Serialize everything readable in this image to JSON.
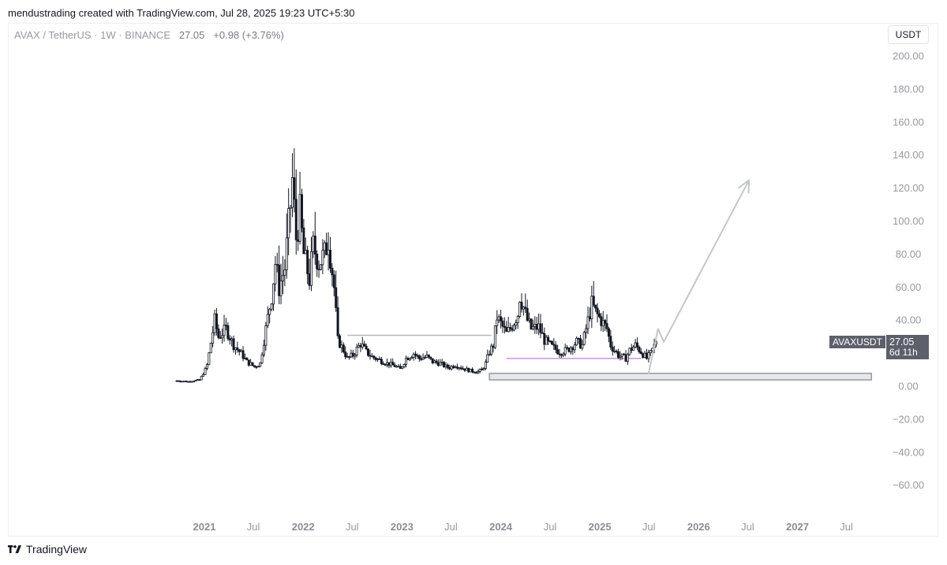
{
  "header": {
    "credit": "mendustrading created with TradingView.com, Jul 28, 2025 19:23 UTC+5:30"
  },
  "legend": {
    "symbol": "AVAX / TetherUS",
    "interval": "1W",
    "exchange": "BINANCE",
    "price": "27.05",
    "change": "+0.98 (+3.76%)"
  },
  "currency_button": "USDT",
  "price_tag": {
    "symbol": "AVAXUSDT",
    "price": "27.05",
    "countdown": "6d 11h"
  },
  "footer": {
    "brand": "TradingView"
  },
  "colors": {
    "candles": "#131722",
    "grid_text": "#9598a1",
    "zone_fill": "#e7e7e9",
    "zone_border": "#9b9ea6",
    "resistance_line": "#b5b8bf",
    "support_line": "#ce93d8",
    "arrow": "#c4c6cc",
    "tag_bg": "#5d606b"
  },
  "chart_data": {
    "type": "candlestick",
    "title": "AVAX / TetherUS · 1W · BINANCE",
    "ylabel": "USDT",
    "ylim": [
      -70,
      205
    ],
    "y_ticks": [
      "200.00",
      "180.00",
      "160.00",
      "140.00",
      "120.00",
      "100.00",
      "80.00",
      "60.00",
      "40.00",
      "20.00",
      "0.00",
      "−20.00",
      "−40.00",
      "−60.00"
    ],
    "x_ticks": [
      {
        "label": "2021",
        "bold": true
      },
      {
        "label": "Jul",
        "bold": false
      },
      {
        "label": "2022",
        "bold": true
      },
      {
        "label": "Jul",
        "bold": false
      },
      {
        "label": "2023",
        "bold": true
      },
      {
        "label": "Jul",
        "bold": false
      },
      {
        "label": "2024",
        "bold": true
      },
      {
        "label": "Jul",
        "bold": false
      },
      {
        "label": "2025",
        "bold": true
      },
      {
        "label": "Jul",
        "bold": false
      },
      {
        "label": "2026",
        "bold": true
      },
      {
        "label": "Jul",
        "bold": false
      },
      {
        "label": "2027",
        "bold": true
      },
      {
        "label": "Jul",
        "bold": false
      }
    ],
    "x_start": "2020-09-21",
    "x_end": "2025-07-28",
    "price_path": [
      [
        "2020-09-21",
        3.5
      ],
      [
        "2020-11-01",
        3.0
      ],
      [
        "2020-12-15",
        4.0
      ],
      [
        "2021-01-10",
        12.0
      ],
      [
        "2021-02-08",
        40.0
      ],
      [
        "2021-02-22",
        30.0
      ],
      [
        "2021-03-22",
        35.0
      ],
      [
        "2021-04-19",
        25.0
      ],
      [
        "2021-05-17",
        20.0
      ],
      [
        "2021-06-07",
        15.0
      ],
      [
        "2021-07-05",
        12.0
      ],
      [
        "2021-07-26",
        14.0
      ],
      [
        "2021-08-16",
        35.0
      ],
      [
        "2021-09-06",
        55.0
      ],
      [
        "2021-09-20",
        75.0
      ],
      [
        "2021-10-04",
        60.0
      ],
      [
        "2021-10-25",
        72.0
      ],
      [
        "2021-11-15",
        110.0
      ],
      [
        "2021-11-22",
        125.0
      ],
      [
        "2021-12-06",
        90.0
      ],
      [
        "2021-12-20",
        105.0
      ],
      [
        "2022-01-03",
        80.0
      ],
      [
        "2022-01-24",
        65.0
      ],
      [
        "2022-02-07",
        85.0
      ],
      [
        "2022-02-28",
        75.0
      ],
      [
        "2022-03-21",
        80.0
      ],
      [
        "2022-04-04",
        90.0
      ],
      [
        "2022-04-25",
        60.0
      ],
      [
        "2022-05-09",
        28.0
      ],
      [
        "2022-05-30",
        22.0
      ],
      [
        "2022-06-13",
        17.0
      ],
      [
        "2022-07-04",
        19.0
      ],
      [
        "2022-08-01",
        26.0
      ],
      [
        "2022-08-22",
        21.0
      ],
      [
        "2022-09-12",
        18.0
      ],
      [
        "2022-10-10",
        16.0
      ],
      [
        "2022-11-07",
        14.0
      ],
      [
        "2022-12-05",
        12.5
      ],
      [
        "2022-12-26",
        10.5
      ],
      [
        "2023-01-16",
        17.0
      ],
      [
        "2023-02-13",
        20.0
      ],
      [
        "2023-03-06",
        17.0
      ],
      [
        "2023-04-03",
        18.0
      ],
      [
        "2023-04-24",
        15.0
      ],
      [
        "2023-05-22",
        14.0
      ],
      [
        "2023-06-12",
        12.0
      ],
      [
        "2023-06-26",
        11.5
      ],
      [
        "2023-07-17",
        13.0
      ],
      [
        "2023-08-14",
        11.0
      ],
      [
        "2023-09-11",
        9.5
      ],
      [
        "2023-10-09",
        9.0
      ],
      [
        "2023-10-23",
        10.0
      ],
      [
        "2023-11-06",
        14.0
      ],
      [
        "2023-11-20",
        21.0
      ],
      [
        "2023-12-04",
        25.0
      ],
      [
        "2023-12-18",
        42.0
      ],
      [
        "2024-01-01",
        38.0
      ],
      [
        "2024-01-22",
        32.0
      ],
      [
        "2024-02-12",
        37.0
      ],
      [
        "2024-03-04",
        44.0
      ],
      [
        "2024-03-11",
        55.0
      ],
      [
        "2024-03-25",
        48.0
      ],
      [
        "2024-04-08",
        40.0
      ],
      [
        "2024-04-22",
        35.0
      ],
      [
        "2024-05-20",
        36.0
      ],
      [
        "2024-06-10",
        28.0
      ],
      [
        "2024-07-08",
        24.0
      ],
      [
        "2024-08-05",
        21.0
      ],
      [
        "2024-09-02",
        22.0
      ],
      [
        "2024-10-07",
        27.0
      ],
      [
        "2024-10-28",
        25.0
      ],
      [
        "2024-11-11",
        35.0
      ],
      [
        "2024-12-02",
        50.0
      ],
      [
        "2024-12-16",
        45.0
      ],
      [
        "2025-01-06",
        40.0
      ],
      [
        "2025-01-27",
        35.0
      ],
      [
        "2025-02-10",
        25.0
      ],
      [
        "2025-03-10",
        19.0
      ],
      [
        "2025-04-07",
        17.0
      ],
      [
        "2025-04-21",
        22.0
      ],
      [
        "2025-05-12",
        25.0
      ],
      [
        "2025-06-02",
        21.0
      ],
      [
        "2025-06-23",
        17.0
      ],
      [
        "2025-07-07",
        20.0
      ],
      [
        "2025-07-28",
        27.05
      ]
    ],
    "annotations": {
      "demand_zone": {
        "from": "2023-11-20",
        "to": "2027-10-01",
        "top": 8.0,
        "bottom": 4.0
      },
      "resistance_line": {
        "from": "2022-06-13",
        "to": "2023-11-27",
        "y": 31.0
      },
      "support_line": {
        "from": "2024-01-22",
        "to": "2025-06-02",
        "y": 17.0
      },
      "projection_arrow": [
        [
          "2025-06-30",
          8.0
        ],
        [
          "2025-08-04",
          35.0
        ],
        [
          "2025-08-25",
          27.0
        ],
        [
          "2026-07-06",
          125.0
        ]
      ]
    },
    "last_price": 27.05
  }
}
